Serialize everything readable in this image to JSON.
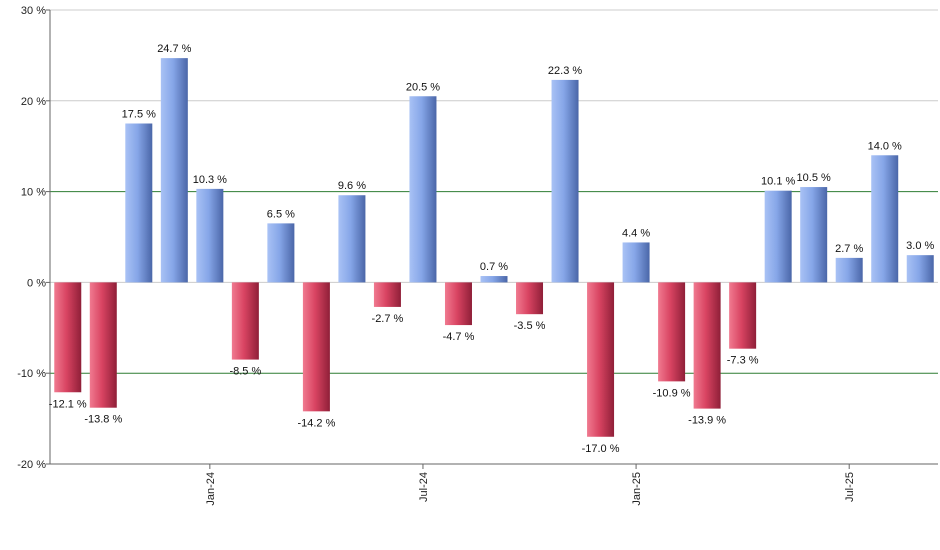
{
  "chart_data": {
    "type": "bar",
    "title": "",
    "xlabel": "",
    "ylabel": "",
    "ylim": [
      -20,
      30
    ],
    "y_ticks": [
      -20,
      -10,
      0,
      10,
      20,
      30
    ],
    "y_tick_labels": [
      "-20 %",
      "-10 %",
      "0 %",
      "10 %",
      "20 %",
      "30 %"
    ],
    "x_tick_labels": [
      {
        "label": "Jan-24",
        "index": 4
      },
      {
        "label": "Jul-24",
        "index": 10
      },
      {
        "label": "Jan-25",
        "index": 16
      },
      {
        "label": "Jul-25",
        "index": 22
      }
    ],
    "values": [
      -12.1,
      -13.8,
      17.5,
      24.7,
      10.3,
      -8.5,
      6.5,
      -14.2,
      9.6,
      -2.7,
      20.5,
      -4.7,
      0.7,
      -3.5,
      22.3,
      -17.0,
      4.4,
      -10.9,
      -13.9,
      -7.3,
      10.1,
      10.5,
      2.7,
      14.0,
      3.0
    ],
    "data_labels": [
      "-12.1 %",
      "-13.8 %",
      "17.5 %",
      "24.7 %",
      "10.3 %",
      "-8.5 %",
      "6.5 %",
      "-14.2 %",
      "9.6 %",
      "-2.7 %",
      "20.5 %",
      "-4.7 %",
      "0.7 %",
      "-3.5 %",
      "22.3 %",
      "-17.0 %",
      "4.4 %",
      "-10.9 %",
      "-13.9 %",
      "-7.3 %",
      "10.1 %",
      "10.5 %",
      "2.7 %",
      "14.0 %",
      "3.0 %"
    ],
    "reference_lines": [
      10,
      -10
    ],
    "grid": true,
    "legend": "none",
    "colors": {
      "positive": "#7b9be0",
      "negative": "#d63f5e",
      "grid": "#cccccc",
      "reference": "#2e7d32",
      "axis": "#666666"
    }
  }
}
